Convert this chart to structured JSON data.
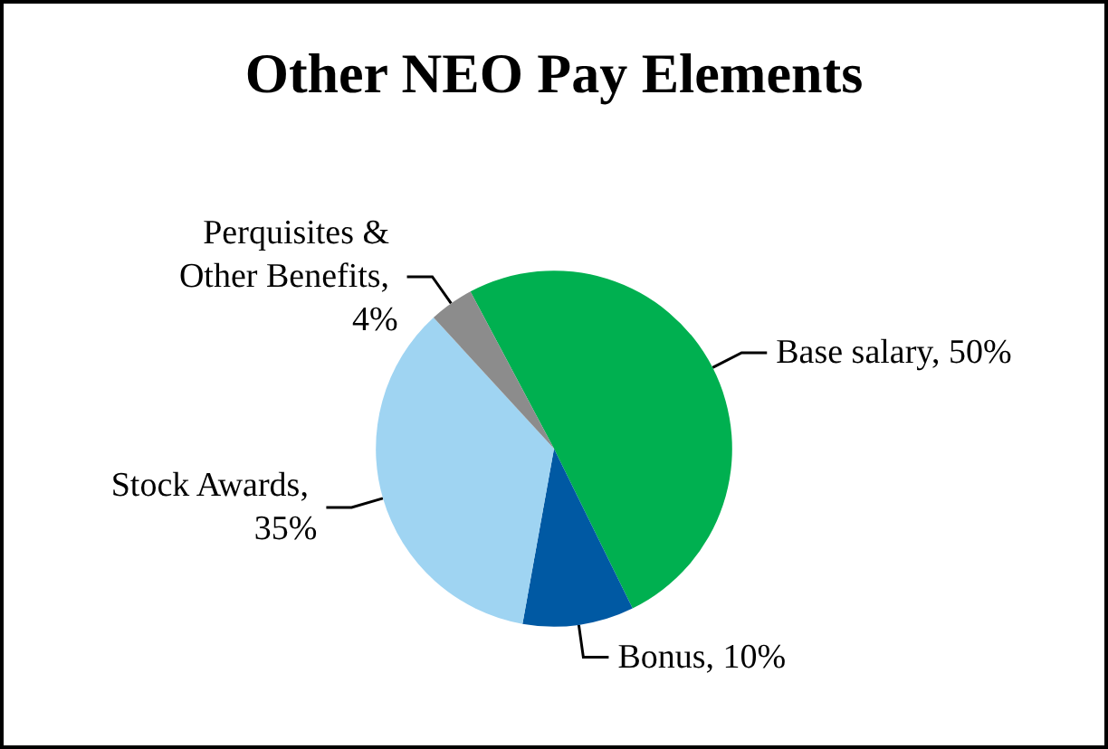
{
  "chart_data": {
    "type": "pie",
    "title": "Other NEO Pay Elements",
    "categories": [
      "Base salary, 50%",
      "Bonus, 10%",
      "Stock Awards, 35%",
      "Perquisites & Other Benefits, 4%"
    ],
    "values": [
      50,
      10,
      35,
      4
    ],
    "colors": [
      "#00b050",
      "#0059a3",
      "#9fd4f2",
      "#8c8c8c"
    ],
    "legend": false
  }
}
